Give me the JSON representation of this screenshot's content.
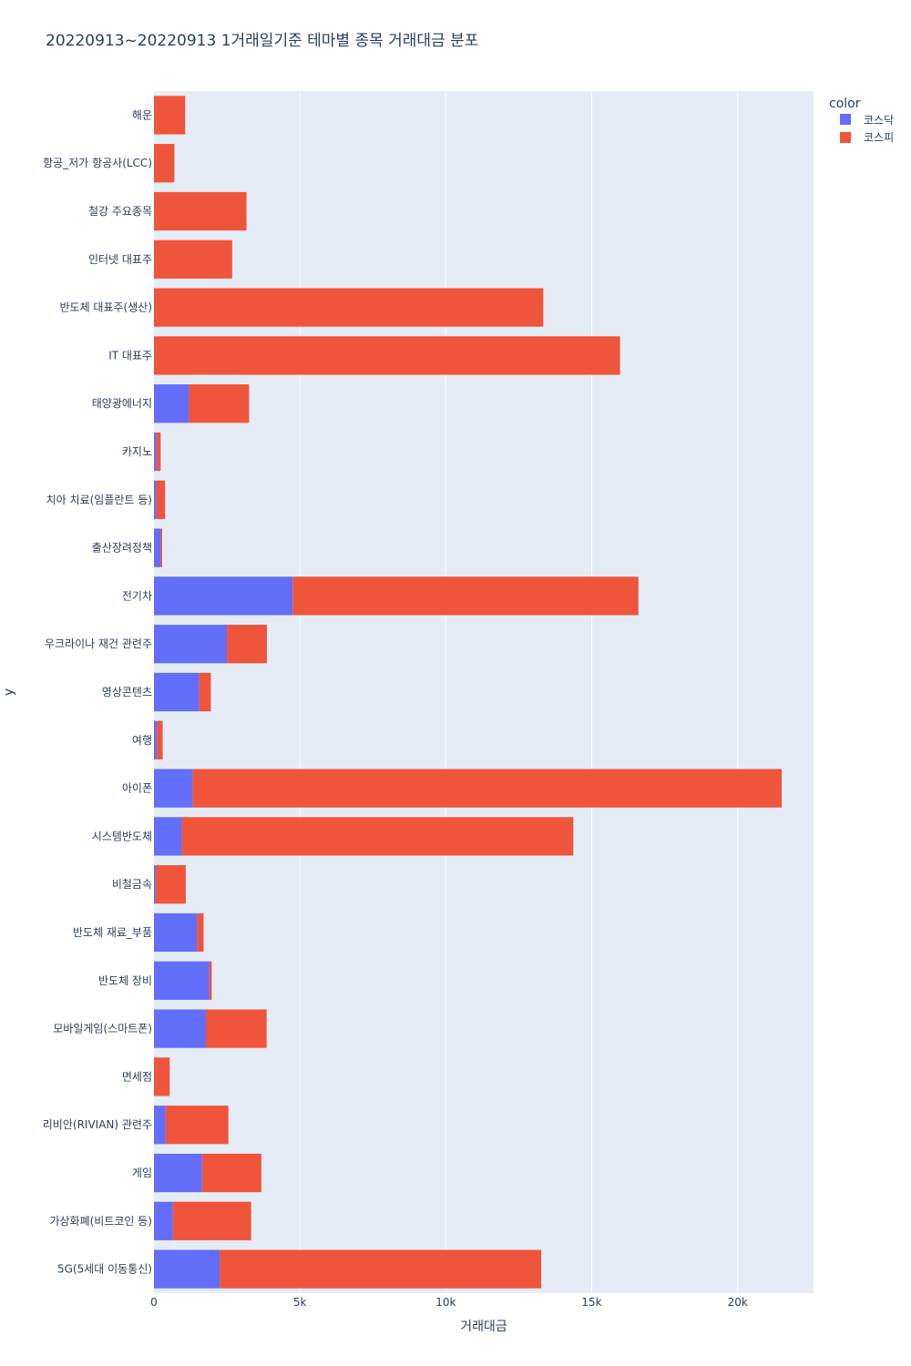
{
  "chart_data": {
    "type": "bar",
    "orientation": "horizontal",
    "barmode": "stack",
    "title": "20220913~20220913 1거래일기준 테마별 종목 거래대금 분포",
    "xlabel": "거래대금",
    "ylabel": "y",
    "xlim": [
      0,
      22600
    ],
    "x_ticks": [
      0,
      5000,
      10000,
      15000,
      20000
    ],
    "x_tick_labels": [
      "0",
      "5k",
      "10k",
      "15k",
      "20k"
    ],
    "grid": true,
    "legend_title": "color",
    "legend_position": "top-right",
    "categories": [
      "해운",
      "항공_저가 항공사(LCC)",
      "철강 주요종목",
      "인터넷 대표주",
      "반도체 대표주(생산)",
      "IT 대표주",
      "태양광에너지",
      "카지노",
      "치아 치료(임플란트 등)",
      "출산장려정책",
      "전기차",
      "우크라이나 재건 관련주",
      "영상콘텐츠",
      "여행",
      "아이폰",
      "시스템반도체",
      "비철금속",
      "반도체 재료_부품",
      "반도체 장비",
      "모바일게임(스마트폰)",
      "면세점",
      "리비안(RIVIAN) 관련주",
      "게임",
      "가상화폐(비트코인 등)",
      "5G(5세대 이동통신)"
    ],
    "series": [
      {
        "name": "코스닥",
        "color": "#636efa",
        "values": [
          0,
          0,
          0,
          0,
          0,
          0,
          1200,
          80,
          80,
          230,
          4750,
          2500,
          1550,
          100,
          1330,
          950,
          60,
          1480,
          1900,
          1780,
          0,
          400,
          1650,
          650,
          2250
        ]
      },
      {
        "name": "코스피",
        "color": "#ef553b",
        "values": [
          1070,
          700,
          3170,
          2680,
          13340,
          15970,
          2060,
          150,
          300,
          50,
          11850,
          1370,
          400,
          200,
          20180,
          13420,
          1030,
          220,
          80,
          2080,
          540,
          2150,
          2030,
          2680,
          11020
        ]
      }
    ]
  }
}
